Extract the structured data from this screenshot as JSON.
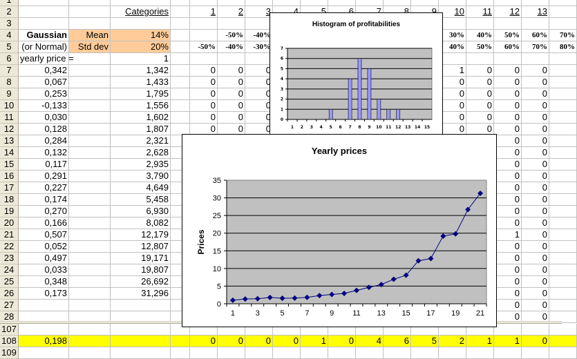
{
  "sheet": {
    "row_numbers": [
      "1",
      "2",
      "3",
      "4",
      "5",
      "6",
      "7",
      "8",
      "9",
      "10",
      "11",
      "12",
      "13",
      "14",
      "15",
      "16",
      "17",
      "18",
      "19",
      "20",
      "21",
      "22",
      "23",
      "24",
      "25",
      "26",
      "27",
      "28",
      "107",
      "108",
      "109"
    ],
    "header_label": {
      "categories": "Categories"
    },
    "categories": [
      "1",
      "2",
      "3",
      "4",
      "5",
      "6",
      "7",
      "8",
      "9",
      "10",
      "11",
      "12",
      "13"
    ],
    "params": {
      "gaussian": "Gaussian",
      "or_normal": "(or Normal)",
      "mean_label": "Mean",
      "mean_value": "14%",
      "std_label": "Std dev",
      "std_value": "20%",
      "yearly_price_label": "yearly price =",
      "yearly_price_value": "1"
    },
    "bin_lower": {
      "F": "-50%",
      "G": "-40%",
      "N": "30%",
      "O": "40%",
      "P": "50%",
      "Q": "60%",
      "R": "70%"
    },
    "bin_upper": {
      "E": "-50%",
      "F": "-40%",
      "G": "-30%",
      "N": "40%",
      "O": "50%",
      "P": "60%",
      "Q": "70%",
      "R": "80%"
    },
    "returns": [
      "0,342",
      "0,067",
      "0,253",
      "-0,133",
      "0,030",
      "0,128",
      "0,284",
      "0,132",
      "0,117",
      "0,291",
      "0,227",
      "0,174",
      "0,270",
      "0,166",
      "0,507",
      "0,052",
      "0,497",
      "0,033",
      "0,348",
      "0,173"
    ],
    "prices": [
      "1,342",
      "1,433",
      "1,795",
      "1,556",
      "1,602",
      "1,807",
      "2,321",
      "2,628",
      "2,935",
      "3,790",
      "4,649",
      "5,458",
      "6,930",
      "8,082",
      "12,179",
      "12,807",
      "19,171",
      "19,807",
      "26,692",
      "31,296"
    ],
    "indicators_top": [
      {
        "E": "0",
        "F": "0",
        "G": "0",
        "N": "1",
        "O": "0",
        "P": "0",
        "Q": "0"
      },
      {
        "E": "0",
        "F": "0",
        "G": "0",
        "N": "0",
        "O": "0",
        "P": "0",
        "Q": "0"
      },
      {
        "E": "0",
        "F": "0",
        "G": "0",
        "N": "0",
        "O": "0",
        "P": "0",
        "Q": "0"
      },
      {
        "E": "0",
        "F": "0",
        "G": "0",
        "N": "0",
        "O": "0",
        "P": "0",
        "Q": "0"
      },
      {
        "E": "0",
        "F": "0",
        "G": "0",
        "N": "0",
        "O": "0",
        "P": "0",
        "Q": "0"
      },
      {
        "E": "0",
        "F": "0",
        "G": "0",
        "N": "0",
        "O": "0",
        "P": "0",
        "Q": "0"
      }
    ],
    "indicators_pq": [
      [
        "0",
        "0"
      ],
      [
        "0",
        "0"
      ],
      [
        "0",
        "0"
      ],
      [
        "0",
        "0"
      ],
      [
        "0",
        "0"
      ],
      [
        "0",
        "0"
      ],
      [
        "0",
        "0"
      ],
      [
        "0",
        "0"
      ],
      [
        "1",
        "0"
      ],
      [
        "0",
        "0"
      ],
      [
        "0",
        "0"
      ],
      [
        "0",
        "0"
      ],
      [
        "0",
        "0"
      ],
      [
        "0",
        "0"
      ],
      [
        "0",
        "0"
      ],
      [
        "0",
        "0"
      ]
    ],
    "summary": {
      "average_return": "0,198",
      "counts": [
        "0",
        "0",
        "0",
        "0",
        "1",
        "0",
        "4",
        "6",
        "5",
        "2",
        "1",
        "1",
        "0"
      ]
    }
  },
  "colors": {
    "param_bg": "#FFCC99",
    "summary_bg": "#FFFF00",
    "hist_bar": "#9999FF",
    "line": "#000080",
    "plot_bg": "#C0C0C0"
  },
  "chart_data": [
    {
      "type": "bar",
      "title": "Histogram of profitabilities",
      "categories": [
        "1",
        "2",
        "3",
        "4",
        "5",
        "6",
        "7",
        "8",
        "9",
        "10",
        "11",
        "12",
        "13",
        "14",
        "15"
      ],
      "values": [
        0,
        0,
        0,
        0,
        1,
        0,
        4,
        6,
        5,
        2,
        1,
        1,
        0,
        0,
        0
      ],
      "ylim": [
        0,
        7
      ],
      "yticks": [
        "0",
        "1",
        "2",
        "3",
        "4",
        "5",
        "6",
        "7"
      ],
      "grid": true
    },
    {
      "type": "line",
      "title": "Yearly prices",
      "ylabel": "Prices",
      "xlabel": "",
      "x": [
        1,
        2,
        3,
        4,
        5,
        6,
        7,
        8,
        9,
        10,
        11,
        12,
        13,
        14,
        15,
        16,
        17,
        18,
        19,
        20,
        21
      ],
      "values": [
        1,
        1.342,
        1.433,
        1.795,
        1.556,
        1.602,
        1.807,
        2.321,
        2.628,
        2.935,
        3.79,
        4.649,
        5.458,
        6.93,
        8.082,
        12.179,
        12.807,
        19.171,
        19.807,
        26.692,
        31.296
      ],
      "xtick_labels": [
        "1",
        "3",
        "5",
        "7",
        "9",
        "11",
        "13",
        "15",
        "17",
        "19",
        "21"
      ],
      "yticks": [
        "0",
        "5",
        "10",
        "15",
        "20",
        "25",
        "30",
        "35"
      ],
      "ylim": [
        0,
        35
      ],
      "grid": true
    }
  ]
}
